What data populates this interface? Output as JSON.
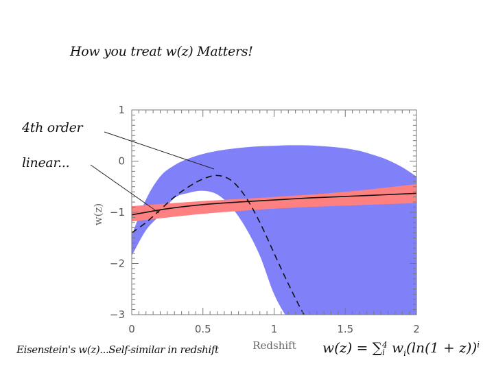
{
  "page": {
    "title": "How you treat w(z) Matters!",
    "annotations": [
      "4th order",
      "linear..."
    ],
    "caption": "Eisenstein's w(z)...Self-similar in redshift",
    "formula": {
      "lhs": "w(z) = ",
      "sum": "∑",
      "sum_sup": "4",
      "sum_sub": "i",
      "term": " w",
      "term_sub": "i",
      "rest": "(ln(1 + z))",
      "power": "i"
    }
  },
  "chart_data": {
    "type": "line",
    "xlabel": "Redshift",
    "ylabel": "w(z)",
    "xlim": [
      0,
      2
    ],
    "ylim": [
      -3,
      1
    ],
    "x_ticks": [
      0,
      0.5,
      1,
      1.5,
      2
    ],
    "x_tick_labels": [
      "0",
      "0.5",
      "1",
      "1.5",
      "2"
    ],
    "y_ticks": [
      1,
      0,
      -1,
      -2,
      -3
    ],
    "y_tick_labels": [
      "1",
      "0",
      "−1",
      "−2",
      "−3"
    ],
    "grid": false,
    "bands": [
      {
        "color": "#8080f8",
        "x": [
          0,
          0.1,
          0.2,
          0.3,
          0.4,
          0.5,
          0.6,
          0.7,
          0.8,
          0.9,
          1.0,
          1.1,
          1.2,
          1.3,
          1.4,
          1.5,
          1.6,
          1.7,
          1.8,
          1.9,
          2.0
        ],
        "upper": [
          -1.45,
          -0.75,
          -0.3,
          -0.08,
          0.05,
          0.14,
          0.2,
          0.24,
          0.27,
          0.29,
          0.3,
          0.31,
          0.31,
          0.3,
          0.28,
          0.25,
          0.2,
          0.12,
          0.02,
          -0.12,
          -0.3
        ],
        "lower": [
          -1.85,
          -1.35,
          -1.05,
          -0.72,
          -0.62,
          -0.58,
          -0.65,
          -0.9,
          -1.3,
          -1.85,
          -2.6,
          -3.1,
          -3.5,
          -3.8,
          -4.0,
          -4.1,
          -4.1,
          -4.0,
          -3.8,
          -3.5,
          -3.2
        ]
      },
      {
        "color": "#ff8080",
        "x": [
          0,
          0.5,
          1.0,
          1.5,
          2.0
        ],
        "upper": [
          -0.88,
          -0.78,
          -0.7,
          -0.6,
          -0.45
        ],
        "lower": [
          -1.18,
          -1.03,
          -0.93,
          -0.87,
          -0.82
        ]
      }
    ],
    "series": [
      {
        "style": "solid",
        "x": [
          0,
          0.25,
          0.5,
          0.75,
          1.0,
          1.25,
          1.5,
          1.75,
          2.0
        ],
        "y": [
          -1.05,
          -0.93,
          -0.85,
          -0.8,
          -0.76,
          -0.72,
          -0.69,
          -0.66,
          -0.63
        ]
      },
      {
        "style": "dashed",
        "x": [
          0,
          0.1,
          0.2,
          0.3,
          0.4,
          0.5,
          0.6,
          0.7,
          0.8,
          0.9,
          1.0,
          1.1,
          1.2,
          1.3
        ],
        "y": [
          -1.4,
          -1.2,
          -0.95,
          -0.7,
          -0.5,
          -0.35,
          -0.28,
          -0.38,
          -0.7,
          -1.2,
          -1.8,
          -2.4,
          -2.95,
          -3.4
        ]
      }
    ]
  }
}
